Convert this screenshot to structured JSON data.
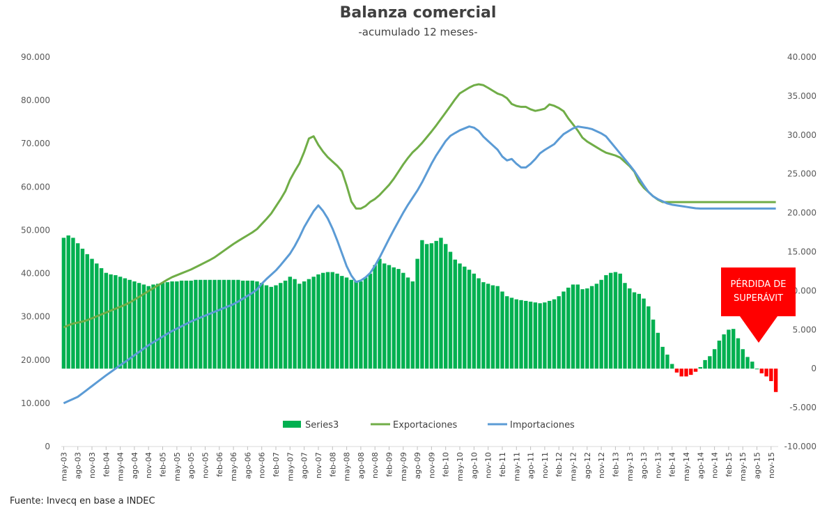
{
  "chart_data": {
    "type": "bar+line",
    "title": "Balanza comercial",
    "subtitle": "-acumulado 12 meses-",
    "source": "Fuente: Invecq en base a INDEC",
    "annotation": "PÉRDIDA DE SUPERÁVIT",
    "left_axis": {
      "ylim": [
        0,
        90000
      ],
      "ticks": [
        "0",
        "10.000",
        "20.000",
        "30.000",
        "40.000",
        "50.000",
        "60.000",
        "70.000",
        "80.000",
        "90.000"
      ],
      "tick_values": [
        0,
        10000,
        20000,
        30000,
        40000,
        50000,
        60000,
        70000,
        80000,
        90000
      ]
    },
    "right_axis": {
      "ylim": [
        -10000,
        40000
      ],
      "ticks": [
        "-10.000",
        "-5.000",
        "0",
        "5.000",
        "10.000",
        "15.000",
        "20.000",
        "25.000",
        "30.000",
        "35.000",
        "40.000"
      ],
      "tick_values": [
        -10000,
        -5000,
        0,
        5000,
        10000,
        15000,
        20000,
        25000,
        30000,
        35000,
        40000
      ]
    },
    "x_tick_labels": [
      "may-03",
      "ago-03",
      "nov-03",
      "feb-04",
      "may-04",
      "ago-04",
      "nov-04",
      "feb-05",
      "may-05",
      "ago-05",
      "nov-05",
      "feb-06",
      "may-06",
      "ago-06",
      "nov-06",
      "feb-07",
      "may-07",
      "ago-07",
      "nov-07",
      "feb-08",
      "may-08",
      "ago-08",
      "nov-08",
      "feb-09",
      "may-09",
      "ago-09",
      "nov-09",
      "feb-10",
      "may-10",
      "ago-10",
      "nov-10",
      "feb-11",
      "may-11",
      "ago-11",
      "nov-11",
      "feb-12",
      "may-12",
      "ago-12",
      "nov-12",
      "feb-13",
      "may-13",
      "ago-13",
      "nov-13",
      "feb-14",
      "may-14",
      "ago-14",
      "nov-14",
      "feb-15",
      "may-15",
      "ago-15",
      "nov-15"
    ],
    "x_start": "may-03",
    "x_end": "dic-15",
    "legend": [
      "Series3",
      "Exportaciones",
      "Importaciones"
    ],
    "legend_position": "bottom-center",
    "colors": {
      "Series3": "#00b050",
      "Series3_negative": "#ff0000",
      "Exportaciones": "#70ad47",
      "Importaciones": "#5b9bd5",
      "annotation": "#ff0000"
    },
    "series": [
      {
        "name": "Series3",
        "axis": "right",
        "kind": "bar",
        "anchors": [
          [
            0,
            16800
          ],
          [
            2,
            17200
          ],
          [
            6,
            15000
          ],
          [
            12,
            12300
          ],
          [
            18,
            11500
          ],
          [
            24,
            10600
          ],
          [
            27,
            11000
          ],
          [
            33,
            11300
          ],
          [
            40,
            11400
          ],
          [
            48,
            11400
          ],
          [
            55,
            11200
          ],
          [
            58,
            10400
          ],
          [
            62,
            11200
          ],
          [
            64,
            12000
          ],
          [
            66,
            10900
          ],
          [
            72,
            12200
          ],
          [
            75,
            12500
          ],
          [
            79,
            11800
          ],
          [
            83,
            11000
          ],
          [
            87,
            12500
          ],
          [
            88,
            14400
          ],
          [
            90,
            13500
          ],
          [
            94,
            12800
          ],
          [
            98,
            11200
          ],
          [
            100,
            15600
          ],
          [
            101,
            16900
          ],
          [
            102,
            16000
          ],
          [
            104,
            16200
          ],
          [
            106,
            16800
          ],
          [
            108,
            15500
          ],
          [
            110,
            13900
          ],
          [
            114,
            12700
          ],
          [
            118,
            11000
          ],
          [
            122,
            10600
          ],
          [
            124,
            9400
          ],
          [
            128,
            8800
          ],
          [
            134,
            8400
          ],
          [
            138,
            8900
          ],
          [
            142,
            10500
          ],
          [
            144,
            11000
          ],
          [
            146,
            10000
          ],
          [
            150,
            11000
          ],
          [
            153,
            12300
          ],
          [
            156,
            12500
          ],
          [
            158,
            10700
          ],
          [
            160,
            9800
          ],
          [
            162,
            9500
          ],
          [
            164,
            8300
          ],
          [
            166,
            5800
          ],
          [
            168,
            3000
          ],
          [
            170,
            1500
          ],
          [
            171,
            500
          ],
          [
            172,
            -400
          ],
          [
            174,
            -1200
          ],
          [
            176,
            -800
          ],
          [
            178,
            -300
          ],
          [
            180,
            1000
          ],
          [
            182,
            1800
          ],
          [
            184,
            3500
          ],
          [
            186,
            4800
          ],
          [
            188,
            5200
          ],
          [
            189,
            4500
          ],
          [
            190,
            3000
          ],
          [
            192,
            1500
          ],
          [
            194,
            600
          ],
          [
            195,
            -300
          ],
          [
            197,
            -800
          ],
          [
            199,
            -1800
          ],
          [
            200,
            -3000
          ]
        ]
      },
      {
        "name": "Exportaciones",
        "axis": "left",
        "kind": "line",
        "anchors": [
          [
            0,
            27500
          ],
          [
            2,
            28300
          ],
          [
            6,
            29000
          ],
          [
            12,
            31000
          ],
          [
            18,
            33000
          ],
          [
            24,
            36000
          ],
          [
            30,
            39000
          ],
          [
            36,
            41000
          ],
          [
            42,
            43500
          ],
          [
            48,
            47000
          ],
          [
            54,
            50000
          ],
          [
            58,
            53500
          ],
          [
            62,
            58500
          ],
          [
            64,
            62500
          ],
          [
            66,
            65000
          ],
          [
            68,
            69000
          ],
          [
            69,
            71500
          ],
          [
            70,
            72000
          ],
          [
            72,
            69000
          ],
          [
            74,
            67000
          ],
          [
            76,
            65500
          ],
          [
            78,
            64000
          ],
          [
            80,
            59000
          ],
          [
            81,
            56000
          ],
          [
            82,
            55000
          ],
          [
            84,
            55000
          ],
          [
            86,
            56500
          ],
          [
            88,
            57500
          ],
          [
            92,
            61000
          ],
          [
            96,
            66000
          ],
          [
            98,
            68000
          ],
          [
            100,
            69500
          ],
          [
            104,
            73500
          ],
          [
            108,
            78000
          ],
          [
            111,
            81500
          ],
          [
            114,
            83000
          ],
          [
            116,
            83800
          ],
          [
            118,
            83500
          ],
          [
            120,
            82500
          ],
          [
            122,
            81500
          ],
          [
            124,
            81000
          ],
          [
            126,
            79000
          ],
          [
            128,
            78500
          ],
          [
            130,
            78500
          ],
          [
            132,
            77500
          ],
          [
            135,
            78000
          ],
          [
            137,
            79500
          ],
          [
            138,
            78500
          ],
          [
            140,
            78000
          ],
          [
            142,
            75500
          ],
          [
            144,
            73500
          ],
          [
            146,
            71000
          ],
          [
            148,
            70000
          ],
          [
            152,
            68000
          ],
          [
            156,
            67000
          ],
          [
            160,
            64000
          ],
          [
            162,
            60500
          ],
          [
            166,
            57500
          ],
          [
            168,
            56500
          ]
        ]
      },
      {
        "name": "Importaciones",
        "axis": "left",
        "kind": "line",
        "anchors": [
          [
            0,
            10000
          ],
          [
            4,
            11500
          ],
          [
            8,
            14000
          ],
          [
            12,
            16500
          ],
          [
            18,
            20000
          ],
          [
            24,
            23500
          ],
          [
            30,
            26500
          ],
          [
            36,
            29000
          ],
          [
            42,
            31000
          ],
          [
            48,
            33000
          ],
          [
            54,
            36000
          ],
          [
            56,
            38000
          ],
          [
            60,
            41000
          ],
          [
            64,
            45000
          ],
          [
            66,
            48000
          ],
          [
            68,
            51500
          ],
          [
            70,
            54000
          ],
          [
            71,
            56000
          ],
          [
            72,
            55500
          ],
          [
            74,
            53000
          ],
          [
            76,
            49500
          ],
          [
            78,
            45000
          ],
          [
            80,
            40500
          ],
          [
            82,
            38000
          ],
          [
            84,
            38500
          ],
          [
            86,
            40000
          ],
          [
            88,
            42500
          ],
          [
            92,
            49000
          ],
          [
            96,
            55000
          ],
          [
            100,
            60000
          ],
          [
            104,
            66500
          ],
          [
            108,
            71500
          ],
          [
            111,
            73000
          ],
          [
            114,
            74000
          ],
          [
            116,
            73500
          ],
          [
            118,
            71500
          ],
          [
            120,
            70000
          ],
          [
            122,
            68500
          ],
          [
            124,
            66000
          ],
          [
            126,
            66500
          ],
          [
            128,
            64500
          ],
          [
            130,
            64500
          ],
          [
            132,
            66000
          ],
          [
            134,
            68000
          ],
          [
            136,
            69000
          ],
          [
            138,
            70000
          ],
          [
            140,
            72000
          ],
          [
            144,
            74000
          ],
          [
            148,
            73500
          ],
          [
            152,
            72000
          ],
          [
            156,
            68000
          ],
          [
            160,
            64000
          ],
          [
            164,
            59000
          ],
          [
            166,
            57500
          ],
          [
            170,
            56000
          ],
          [
            174,
            55500
          ],
          [
            178,
            55000
          ],
          [
            180,
            55000
          ]
        ]
      }
    ]
  }
}
